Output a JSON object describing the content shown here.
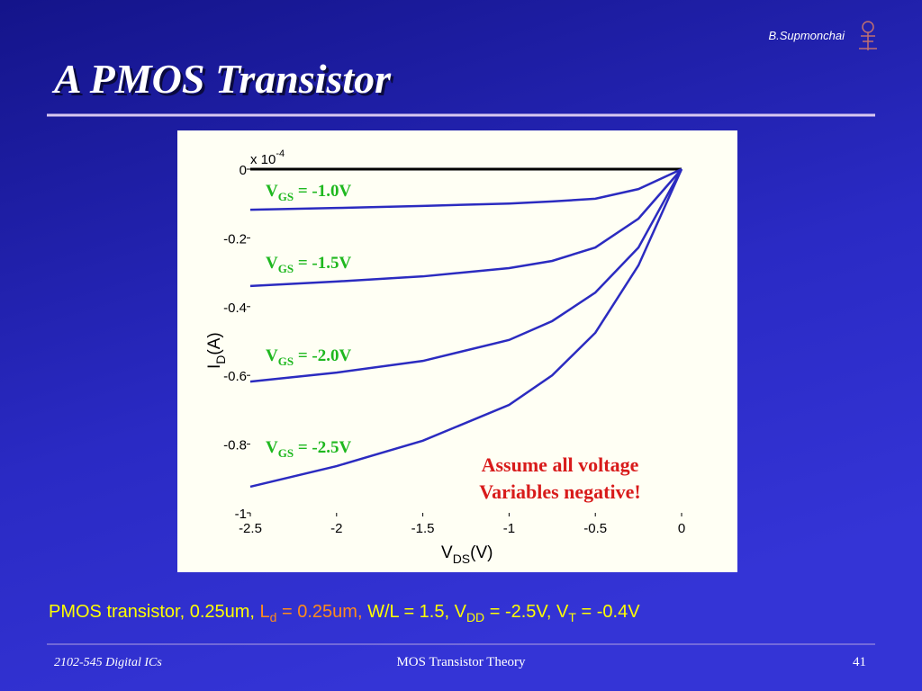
{
  "header": {
    "author": "B.Supmonchai",
    "title": "A PMOS Transistor"
  },
  "chart_data": {
    "type": "line",
    "multiplier": {
      "base": "x 10",
      "exponent": "-4"
    },
    "y_label": {
      "main": "I",
      "sub": "D",
      "rest": "(A)"
    },
    "x_label": {
      "main": "V",
      "sub": "DS",
      "rest": "(V)"
    },
    "x": [
      -2.5,
      -2,
      -1.5,
      -1,
      -0.75,
      -0.5,
      -0.25,
      0
    ],
    "xlim": [
      -2.5,
      0
    ],
    "xticks": [
      -2.5,
      -2,
      -1.5,
      -1,
      -0.5,
      0
    ],
    "ylim": [
      -1,
      0
    ],
    "yticks": [
      0,
      -0.2,
      -0.4,
      -0.6,
      -0.8,
      -1
    ],
    "series": [
      {
        "label_parts": [
          "V",
          "GS",
          " = -1.0V"
        ],
        "color": "#2b2bc0",
        "values": [
          -0.118,
          -0.113,
          -0.107,
          -0.1,
          -0.094,
          -0.086,
          -0.058,
          0
        ]
      },
      {
        "label_parts": [
          "V",
          "GS",
          " = -1.5V"
        ],
        "color": "#2b2bc0",
        "values": [
          -0.34,
          -0.327,
          -0.312,
          -0.288,
          -0.267,
          -0.228,
          -0.144,
          0
        ]
      },
      {
        "label_parts": [
          "V",
          "GS",
          " = -2.0V"
        ],
        "color": "#2b2bc0",
        "values": [
          -0.618,
          -0.592,
          -0.558,
          -0.497,
          -0.442,
          -0.359,
          -0.228,
          0
        ]
      },
      {
        "label_parts": [
          "V",
          "GS",
          " = -2.5V"
        ],
        "color": "#2b2bc0",
        "values": [
          -0.924,
          -0.864,
          -0.79,
          -0.686,
          -0.6,
          -0.476,
          -0.28,
          0
        ]
      }
    ],
    "label_color": "#1fb81f",
    "annotation": [
      "Assume all voltage",
      "Variables negative!"
    ],
    "annotation_color": "#d81b1b"
  },
  "caption": [
    "PMOS transistor, 0.25um, ",
    "L",
    "d",
    " = 0.25um,",
    " W/L = 1.5, V",
    "DD",
    " = -2.5V, V",
    "T",
    " = -0.4V"
  ],
  "footer": {
    "course": "2102-545 Digital ICs",
    "topic": "MOS Transistor Theory",
    "page": "41"
  }
}
